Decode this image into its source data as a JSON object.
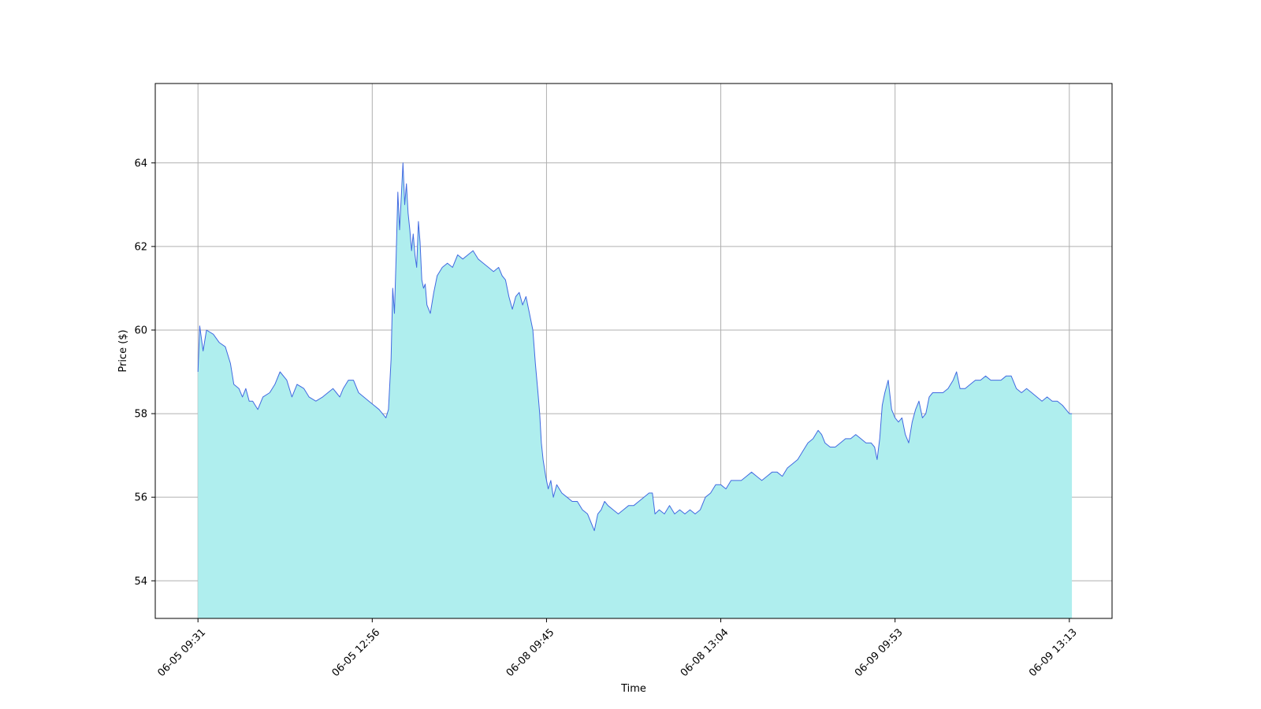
{
  "chart_data": {
    "type": "area",
    "title": "",
    "xlabel": "Time",
    "ylabel": "Price ($)",
    "ylim": [
      53.1,
      65.9
    ],
    "y_ticks": [
      54,
      56,
      58,
      60,
      62,
      64
    ],
    "x_tick_labels": [
      "06-05 09:31",
      "06-05 12:56",
      "06-08 09:45",
      "06-08 13:04",
      "06-09 09:53",
      "06-09 13:13"
    ],
    "x_tick_index": [
      0,
      204,
      408,
      612,
      816,
      1020
    ],
    "x_range_index": [
      -50,
      1070
    ],
    "grid": true,
    "legend": "none",
    "line_color": "#4169e1",
    "fill_color": "#afeeee",
    "series": [
      {
        "points": [
          [
            0,
            59.0
          ],
          [
            2,
            60.1
          ],
          [
            6,
            59.5
          ],
          [
            10,
            60.0
          ],
          [
            18,
            59.9
          ],
          [
            25,
            59.7
          ],
          [
            32,
            59.6
          ],
          [
            38,
            59.2
          ],
          [
            42,
            58.7
          ],
          [
            48,
            58.6
          ],
          [
            52,
            58.4
          ],
          [
            56,
            58.6
          ],
          [
            60,
            58.3
          ],
          [
            64,
            58.3
          ],
          [
            70,
            58.1
          ],
          [
            76,
            58.4
          ],
          [
            84,
            58.5
          ],
          [
            90,
            58.7
          ],
          [
            96,
            59.0
          ],
          [
            104,
            58.8
          ],
          [
            110,
            58.4
          ],
          [
            116,
            58.7
          ],
          [
            124,
            58.6
          ],
          [
            130,
            58.4
          ],
          [
            138,
            58.3
          ],
          [
            146,
            58.4
          ],
          [
            152,
            58.5
          ],
          [
            158,
            58.6
          ],
          [
            162,
            58.5
          ],
          [
            166,
            58.4
          ],
          [
            170,
            58.6
          ],
          [
            176,
            58.8
          ],
          [
            182,
            58.8
          ],
          [
            188,
            58.5
          ],
          [
            194,
            58.4
          ],
          [
            200,
            58.3
          ],
          [
            206,
            58.2
          ],
          [
            212,
            58.1
          ],
          [
            216,
            58.0
          ],
          [
            220,
            57.9
          ],
          [
            223,
            58.1
          ],
          [
            226,
            59.3
          ],
          [
            228,
            61.0
          ],
          [
            230,
            60.4
          ],
          [
            232,
            61.8
          ],
          [
            234,
            63.3
          ],
          [
            236,
            62.4
          ],
          [
            238,
            63.2
          ],
          [
            240,
            64.0
          ],
          [
            242,
            63.0
          ],
          [
            244,
            63.5
          ],
          [
            246,
            62.8
          ],
          [
            248,
            62.4
          ],
          [
            250,
            61.9
          ],
          [
            252,
            62.3
          ],
          [
            254,
            61.8
          ],
          [
            256,
            61.5
          ],
          [
            258,
            62.6
          ],
          [
            260,
            62.1
          ],
          [
            262,
            61.2
          ],
          [
            264,
            61.0
          ],
          [
            266,
            61.1
          ],
          [
            268,
            60.6
          ],
          [
            272,
            60.4
          ],
          [
            276,
            60.9
          ],
          [
            280,
            61.3
          ],
          [
            286,
            61.5
          ],
          [
            292,
            61.6
          ],
          [
            298,
            61.5
          ],
          [
            304,
            61.8
          ],
          [
            310,
            61.7
          ],
          [
            316,
            61.8
          ],
          [
            322,
            61.9
          ],
          [
            328,
            61.7
          ],
          [
            334,
            61.6
          ],
          [
            340,
            61.5
          ],
          [
            346,
            61.4
          ],
          [
            352,
            61.5
          ],
          [
            356,
            61.3
          ],
          [
            360,
            61.2
          ],
          [
            364,
            60.8
          ],
          [
            368,
            60.5
          ],
          [
            372,
            60.8
          ],
          [
            376,
            60.9
          ],
          [
            380,
            60.6
          ],
          [
            384,
            60.8
          ],
          [
            388,
            60.4
          ],
          [
            392,
            60.0
          ],
          [
            395,
            59.2
          ],
          [
            398,
            58.5
          ],
          [
            400,
            58.0
          ],
          [
            402,
            57.3
          ],
          [
            404,
            56.9
          ],
          [
            407,
            56.5
          ],
          [
            410,
            56.2
          ],
          [
            413,
            56.4
          ],
          [
            416,
            56.0
          ],
          [
            420,
            56.3
          ],
          [
            426,
            56.1
          ],
          [
            432,
            56.0
          ],
          [
            438,
            55.9
          ],
          [
            444,
            55.9
          ],
          [
            450,
            55.7
          ],
          [
            456,
            55.6
          ],
          [
            460,
            55.4
          ],
          [
            464,
            55.2
          ],
          [
            468,
            55.6
          ],
          [
            472,
            55.7
          ],
          [
            476,
            55.9
          ],
          [
            480,
            55.8
          ],
          [
            486,
            55.7
          ],
          [
            492,
            55.6
          ],
          [
            498,
            55.7
          ],
          [
            504,
            55.8
          ],
          [
            510,
            55.8
          ],
          [
            516,
            55.9
          ],
          [
            522,
            56.0
          ],
          [
            528,
            56.1
          ],
          [
            532,
            56.1
          ],
          [
            535,
            55.6
          ],
          [
            540,
            55.7
          ],
          [
            546,
            55.6
          ],
          [
            552,
            55.8
          ],
          [
            558,
            55.6
          ],
          [
            564,
            55.7
          ],
          [
            570,
            55.6
          ],
          [
            576,
            55.7
          ],
          [
            582,
            55.6
          ],
          [
            588,
            55.7
          ],
          [
            594,
            56.0
          ],
          [
            600,
            56.1
          ],
          [
            606,
            56.3
          ],
          [
            612,
            56.3
          ],
          [
            618,
            56.2
          ],
          [
            624,
            56.4
          ],
          [
            630,
            56.4
          ],
          [
            636,
            56.4
          ],
          [
            642,
            56.5
          ],
          [
            648,
            56.6
          ],
          [
            654,
            56.5
          ],
          [
            660,
            56.4
          ],
          [
            666,
            56.5
          ],
          [
            672,
            56.6
          ],
          [
            678,
            56.6
          ],
          [
            684,
            56.5
          ],
          [
            690,
            56.7
          ],
          [
            696,
            56.8
          ],
          [
            702,
            56.9
          ],
          [
            708,
            57.1
          ],
          [
            714,
            57.3
          ],
          [
            720,
            57.4
          ],
          [
            726,
            57.6
          ],
          [
            730,
            57.5
          ],
          [
            734,
            57.3
          ],
          [
            740,
            57.2
          ],
          [
            746,
            57.2
          ],
          [
            752,
            57.3
          ],
          [
            758,
            57.4
          ],
          [
            764,
            57.4
          ],
          [
            770,
            57.5
          ],
          [
            776,
            57.4
          ],
          [
            782,
            57.3
          ],
          [
            788,
            57.3
          ],
          [
            792,
            57.2
          ],
          [
            795,
            56.9
          ],
          [
            798,
            57.4
          ],
          [
            801,
            58.2
          ],
          [
            804,
            58.5
          ],
          [
            808,
            58.8
          ],
          [
            812,
            58.1
          ],
          [
            816,
            57.9
          ],
          [
            820,
            57.8
          ],
          [
            824,
            57.9
          ],
          [
            828,
            57.5
          ],
          [
            832,
            57.3
          ],
          [
            836,
            57.8
          ],
          [
            840,
            58.1
          ],
          [
            844,
            58.3
          ],
          [
            848,
            57.9
          ],
          [
            852,
            58.0
          ],
          [
            856,
            58.4
          ],
          [
            860,
            58.5
          ],
          [
            866,
            58.5
          ],
          [
            872,
            58.5
          ],
          [
            878,
            58.6
          ],
          [
            884,
            58.8
          ],
          [
            888,
            59.0
          ],
          [
            892,
            58.6
          ],
          [
            898,
            58.6
          ],
          [
            904,
            58.7
          ],
          [
            910,
            58.8
          ],
          [
            916,
            58.8
          ],
          [
            922,
            58.9
          ],
          [
            928,
            58.8
          ],
          [
            934,
            58.8
          ],
          [
            940,
            58.8
          ],
          [
            946,
            58.9
          ],
          [
            952,
            58.9
          ],
          [
            958,
            58.6
          ],
          [
            964,
            58.5
          ],
          [
            970,
            58.6
          ],
          [
            976,
            58.5
          ],
          [
            982,
            58.4
          ],
          [
            988,
            58.3
          ],
          [
            994,
            58.4
          ],
          [
            1000,
            58.3
          ],
          [
            1006,
            58.3
          ],
          [
            1012,
            58.2
          ],
          [
            1016,
            58.1
          ],
          [
            1020,
            58.0
          ],
          [
            1023,
            58.0
          ]
        ]
      }
    ]
  }
}
